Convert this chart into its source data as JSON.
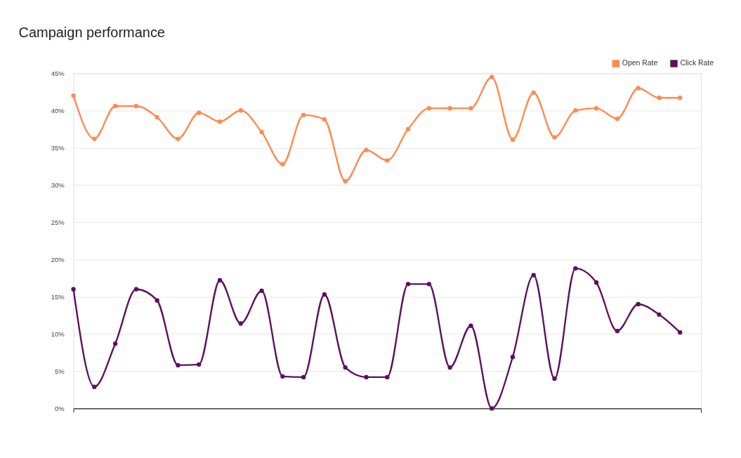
{
  "chart_data": {
    "type": "line",
    "title": "Campaign performance",
    "categories": [
      null,
      null,
      null,
      null,
      null,
      null,
      null,
      null,
      null,
      null,
      null,
      null,
      null,
      null,
      null,
      null,
      null,
      null,
      null,
      null,
      null,
      null,
      null,
      null,
      null,
      null,
      null,
      null,
      null,
      null
    ],
    "series": [
      {
        "name": "Open Rate",
        "color": "#ff8a50",
        "values": [
          42.0,
          36.2,
          40.6,
          40.6,
          39.1,
          36.2,
          39.7,
          38.5,
          40.0,
          37.1,
          32.8,
          39.4,
          38.8,
          30.5,
          34.7,
          33.3,
          37.5,
          40.3,
          40.3,
          40.3,
          44.5,
          36.1,
          42.4,
          36.4,
          40.0,
          40.3,
          38.9,
          43.0,
          41.7,
          41.7
        ]
      },
      {
        "name": "Click Rate",
        "color": "#5c1160",
        "values": [
          16.0,
          2.9,
          8.7,
          16.0,
          14.5,
          5.8,
          5.9,
          17.2,
          11.4,
          15.8,
          4.3,
          4.2,
          15.3,
          5.5,
          4.2,
          4.2,
          16.7,
          16.7,
          5.5,
          11.1,
          0.0,
          6.9,
          17.9,
          4.0,
          18.8,
          16.9,
          10.4,
          14.0,
          12.6,
          10.2
        ]
      }
    ],
    "ylim": [
      0,
      45
    ],
    "yticks": [
      {
        "value": 0,
        "label": "0%"
      },
      {
        "value": 5,
        "label": "5%"
      },
      {
        "value": 10,
        "label": "10%"
      },
      {
        "value": 15,
        "label": "15%"
      },
      {
        "value": 20,
        "label": "20%"
      },
      {
        "value": 25,
        "label": "25%"
      },
      {
        "value": 30,
        "label": "30%"
      },
      {
        "value": 35,
        "label": "35%"
      },
      {
        "value": 40,
        "label": "40%"
      },
      {
        "value": 45,
        "label": "45%"
      }
    ],
    "grid": "y",
    "legend": "top right",
    "marker": "circle",
    "line_style": "solid",
    "tick_labels": "y"
  }
}
